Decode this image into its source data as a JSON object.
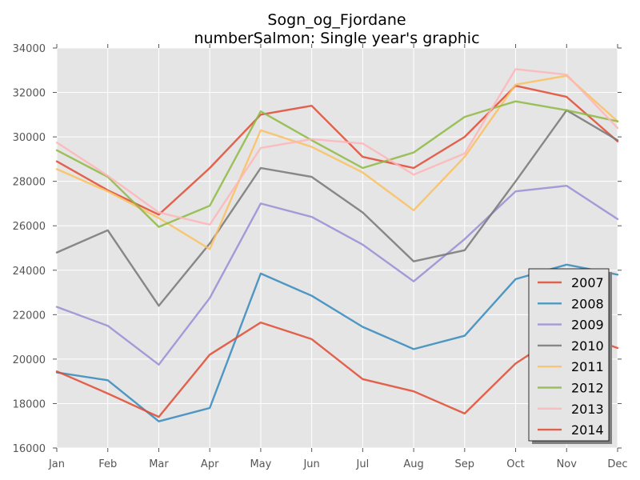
{
  "chart_data": {
    "type": "line",
    "title": "Sogn_og_Fjordane",
    "subtitle": "numberSalmon: Single year's graphic",
    "xlabel": "",
    "ylabel": "",
    "categories": [
      "Jan",
      "Feb",
      "Mar",
      "Apr",
      "May",
      "Jun",
      "Jul",
      "Aug",
      "Sep",
      "Oct",
      "Nov",
      "Dec"
    ],
    "ylim": [
      16000,
      34000
    ],
    "yticks": [
      16000,
      18000,
      20000,
      22000,
      24000,
      26000,
      28000,
      30000,
      32000,
      34000
    ],
    "grid": true,
    "legend_position": "bottom-right",
    "series": [
      {
        "name": "2007",
        "color": "#e24a33",
        "values": [
          28900,
          27600,
          26500,
          28600,
          31000,
          31400,
          29100,
          28600,
          30000,
          32300,
          31800,
          29800
        ]
      },
      {
        "name": "2008",
        "color": "#348abd",
        "values": [
          19400,
          19050,
          17200,
          17800,
          23850,
          22850,
          21450,
          20450,
          21050,
          23600,
          24250,
          23800
        ]
      },
      {
        "name": "2009",
        "color": "#988ed5",
        "values": [
          22350,
          21500,
          19750,
          22750,
          27000,
          26400,
          25150,
          23500,
          25400,
          27550,
          27800,
          26300
        ]
      },
      {
        "name": "2010",
        "color": "#777777",
        "values": [
          24800,
          25800,
          22400,
          25200,
          28600,
          28200,
          26600,
          24400,
          24900,
          28000,
          31200,
          29850
        ]
      },
      {
        "name": "2011",
        "color": "#fbc15e",
        "values": [
          28550,
          27550,
          26350,
          24950,
          30300,
          29550,
          28400,
          26700,
          29100,
          32350,
          32750,
          30700
        ]
      },
      {
        "name": "2012",
        "color": "#8eba42",
        "values": [
          29400,
          28200,
          25950,
          26900,
          31150,
          29850,
          28600,
          29300,
          30900,
          31600,
          31200,
          30700
        ]
      },
      {
        "name": "2013",
        "color": "#ffb5b8",
        "values": [
          29750,
          28250,
          26600,
          26050,
          29500,
          29900,
          29700,
          28300,
          29250,
          33050,
          32800,
          30400
        ]
      },
      {
        "name": "2014",
        "color": "#e24a33",
        "values": [
          19450,
          18450,
          17400,
          20200,
          21650,
          20900,
          19100,
          18550,
          17550,
          19800,
          21300,
          20500
        ]
      }
    ]
  }
}
